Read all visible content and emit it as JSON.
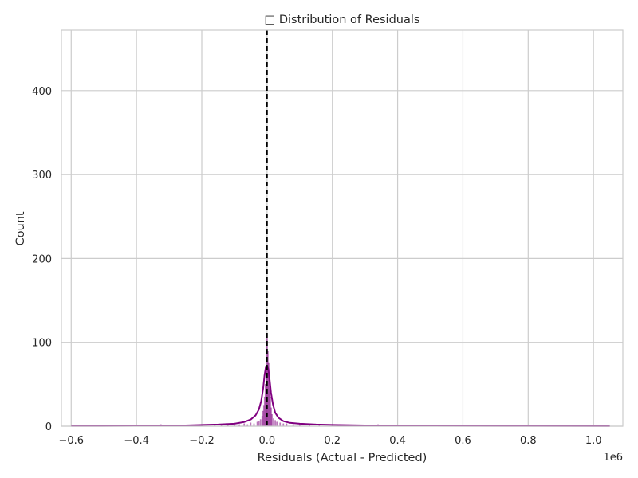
{
  "chart_data": {
    "type": "histogram",
    "title": "□ Distribution of Residuals",
    "xlabel": "Residuals (Actual - Predicted)",
    "ylabel": "Count",
    "x_offset_label": "1e6",
    "xlim": [
      -0.63,
      1.09
    ],
    "ylim": [
      0,
      472
    ],
    "x_ticks": [
      -0.6,
      -0.4,
      -0.2,
      0.0,
      0.2,
      0.4,
      0.6,
      0.8,
      1.0
    ],
    "x_tick_labels": [
      "−0.6",
      "−0.4",
      "−0.2",
      "0.0",
      "0.2",
      "0.4",
      "0.6",
      "0.8",
      "1.0"
    ],
    "y_ticks": [
      0,
      100,
      200,
      300,
      400
    ],
    "y_tick_labels": [
      "0",
      "100",
      "200",
      "300",
      "400"
    ],
    "grid": true,
    "reference_line": {
      "x": 0.0,
      "style": "dashed",
      "color": "#000000"
    },
    "histogram": {
      "color": "#800080",
      "bin_width": 0.0025,
      "bins": [
        {
          "x": -0.325,
          "count": 2
        },
        {
          "x": -0.2,
          "count": 1
        },
        {
          "x": -0.16,
          "count": 1
        },
        {
          "x": -0.14,
          "count": 1
        },
        {
          "x": -0.12,
          "count": 1
        },
        {
          "x": -0.1,
          "count": 2
        },
        {
          "x": -0.085,
          "count": 2
        },
        {
          "x": -0.07,
          "count": 3
        },
        {
          "x": -0.06,
          "count": 2
        },
        {
          "x": -0.05,
          "count": 4
        },
        {
          "x": -0.04,
          "count": 3
        },
        {
          "x": -0.03,
          "count": 5
        },
        {
          "x": -0.025,
          "count": 6
        },
        {
          "x": -0.02,
          "count": 8
        },
        {
          "x": -0.015,
          "count": 12
        },
        {
          "x": -0.0125,
          "count": 18
        },
        {
          "x": -0.01,
          "count": 25
        },
        {
          "x": -0.0075,
          "count": 35
        },
        {
          "x": -0.005,
          "count": 50
        },
        {
          "x": -0.0025,
          "count": 70
        },
        {
          "x": 0.0,
          "count": 105
        },
        {
          "x": 0.0025,
          "count": 90
        },
        {
          "x": 0.005,
          "count": 75
        },
        {
          "x": 0.0075,
          "count": 55
        },
        {
          "x": 0.01,
          "count": 35
        },
        {
          "x": 0.0125,
          "count": 22
        },
        {
          "x": 0.015,
          "count": 14
        },
        {
          "x": 0.02,
          "count": 9
        },
        {
          "x": 0.025,
          "count": 7
        },
        {
          "x": 0.03,
          "count": 5
        },
        {
          "x": 0.04,
          "count": 4
        },
        {
          "x": 0.05,
          "count": 3
        },
        {
          "x": 0.06,
          "count": 3
        },
        {
          "x": 0.08,
          "count": 2
        },
        {
          "x": 0.1,
          "count": 2
        },
        {
          "x": 0.13,
          "count": 1
        },
        {
          "x": 0.16,
          "count": 1
        },
        {
          "x": 0.2,
          "count": 1
        },
        {
          "x": 0.34,
          "count": 2
        },
        {
          "x": 0.5,
          "count": 1
        },
        {
          "x": 1.04,
          "count": 1
        }
      ]
    },
    "kde": {
      "color": "#800080",
      "x": [
        -0.6,
        -0.4,
        -0.25,
        -0.15,
        -0.1,
        -0.07,
        -0.05,
        -0.035,
        -0.025,
        -0.018,
        -0.012,
        -0.008,
        -0.004,
        0.0,
        0.004,
        0.008,
        0.012,
        0.018,
        0.025,
        0.035,
        0.05,
        0.07,
        0.1,
        0.15,
        0.2,
        0.3,
        0.5,
        0.8,
        1.05
      ],
      "y": [
        0.3,
        0.5,
        1,
        2,
        3,
        5,
        8,
        13,
        20,
        30,
        45,
        60,
        70,
        72,
        68,
        55,
        40,
        26,
        16,
        10,
        6,
        4,
        3,
        2,
        1.5,
        1,
        0.5,
        0.3,
        0.2
      ]
    }
  }
}
